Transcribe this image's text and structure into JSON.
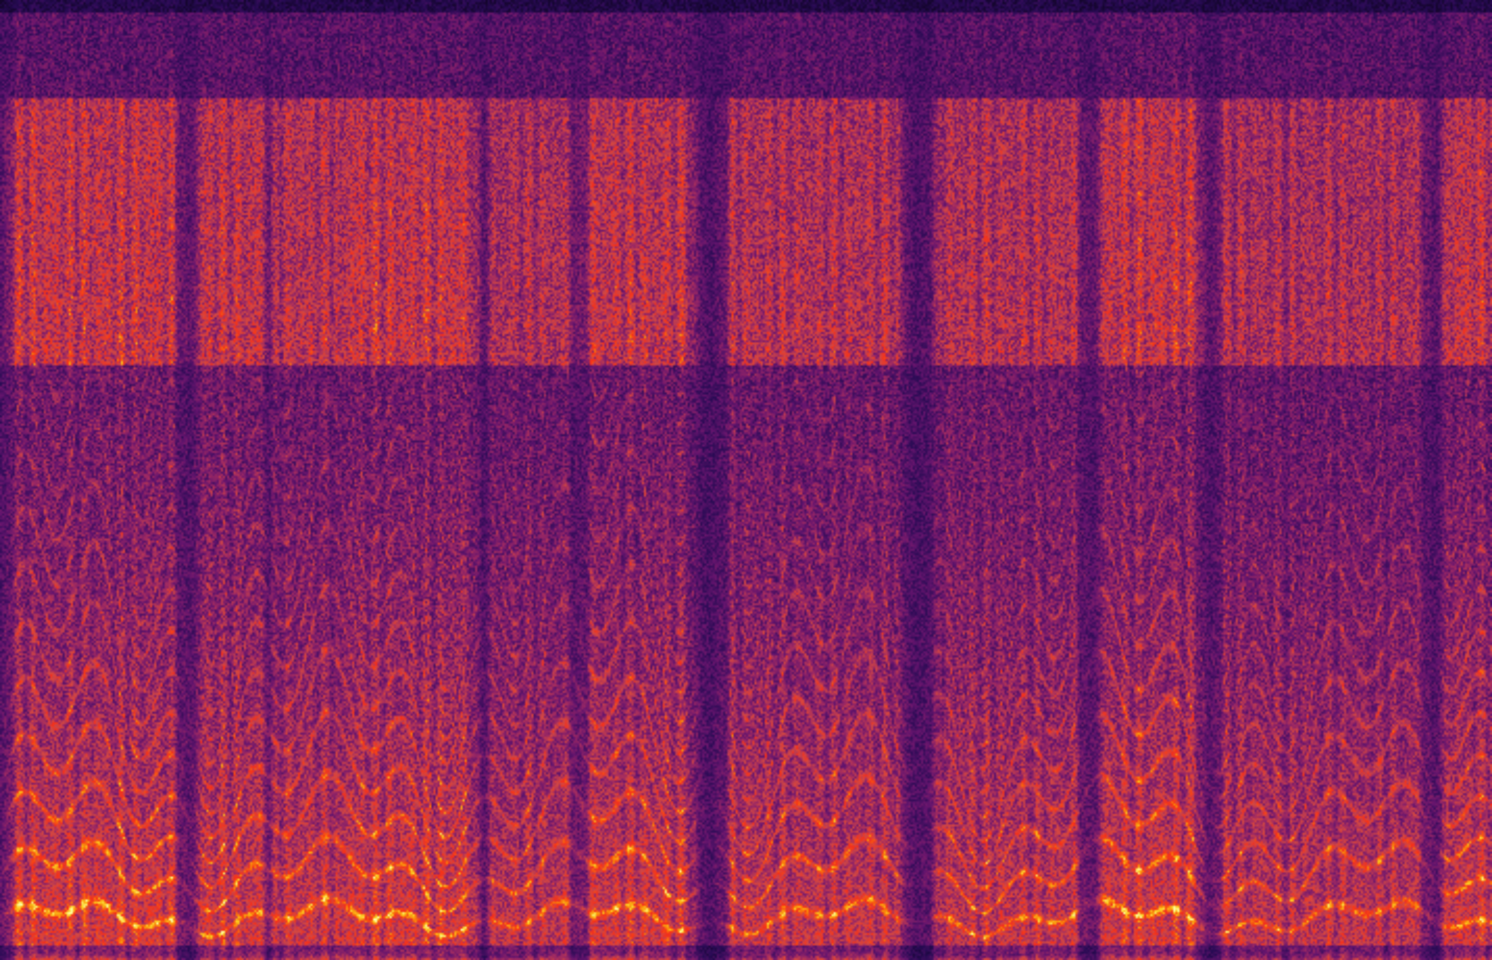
{
  "chart_data": {
    "type": "heatmap",
    "title": "",
    "xlabel": "",
    "ylabel": "",
    "colormap": [
      "#000004",
      "#280b54",
      "#65156e",
      "#9f2a63",
      "#d44842",
      "#f52f1a",
      "#fa8a0a",
      "#fcd225",
      "#fcffa4"
    ],
    "grid": false,
    "legend": "none"
  }
}
